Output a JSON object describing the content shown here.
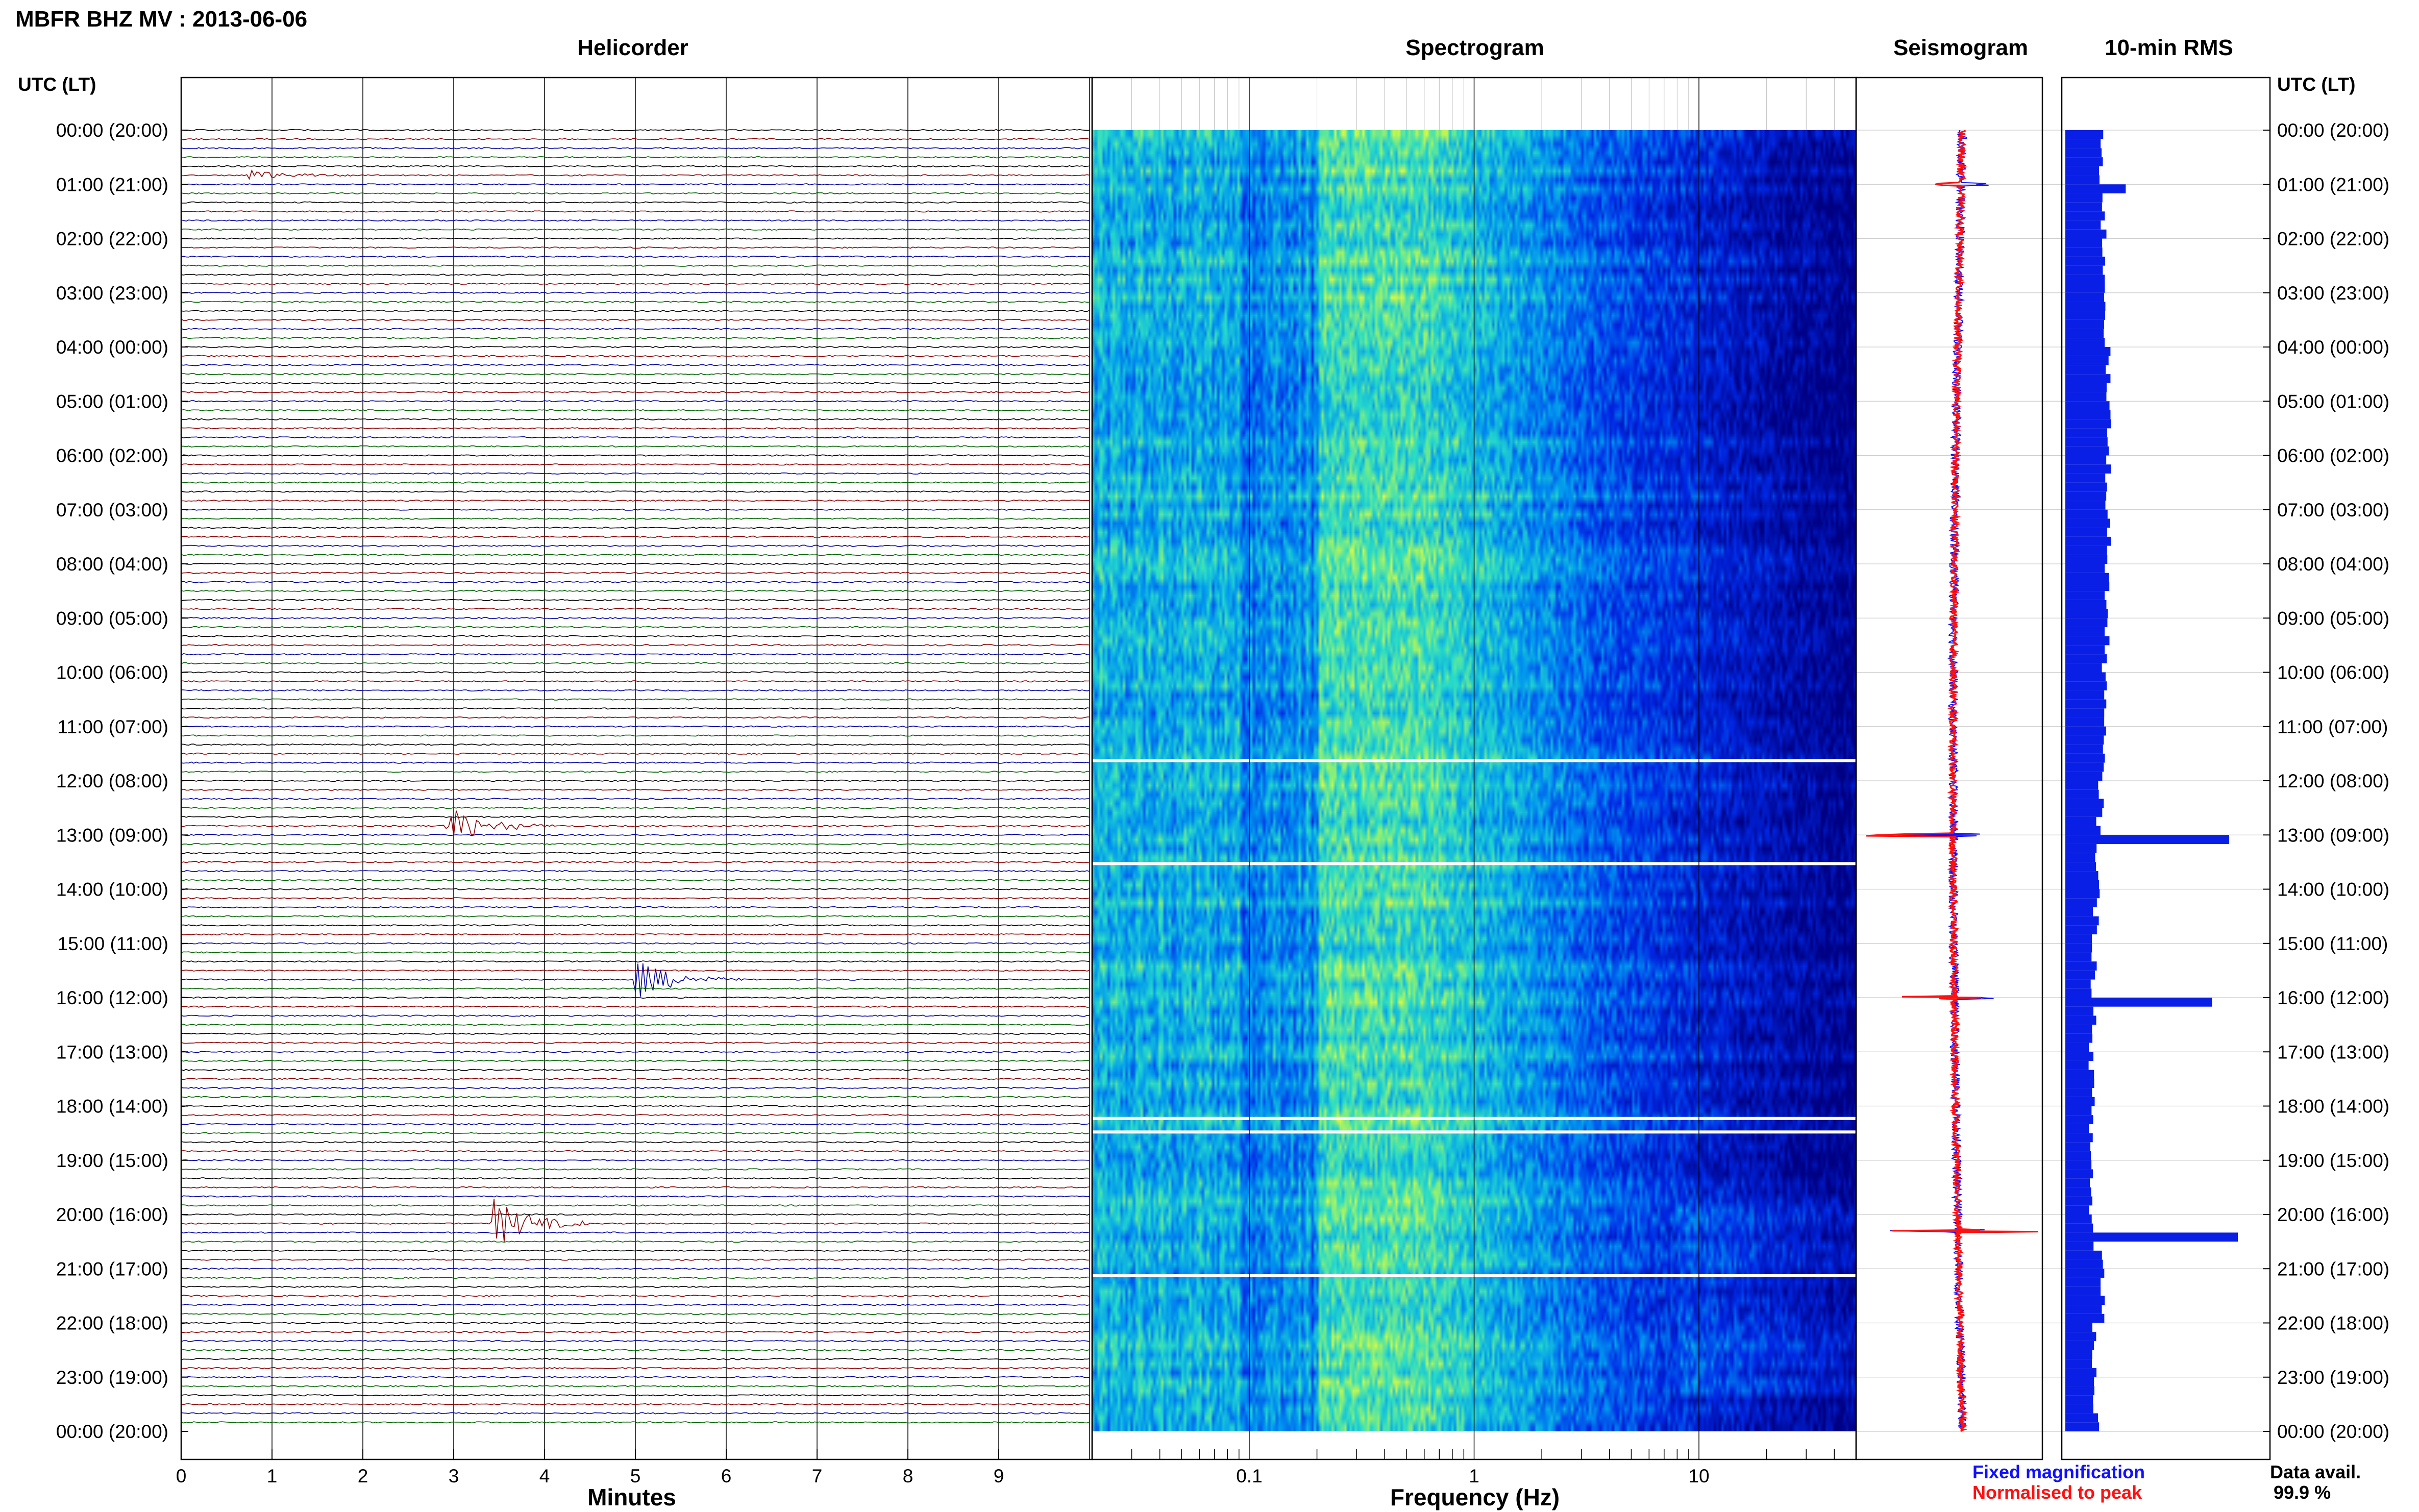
{
  "header": {
    "title": "MBFR BHZ MV : 2013-06-06",
    "left_axis_label": "UTC (LT)",
    "right_axis_label": "UTC (LT)"
  },
  "panels": {
    "helicorder": "Helicorder",
    "spectrogram": "Spectrogram",
    "seismogram": "Seismogram",
    "rms": "10-min RMS"
  },
  "axes": {
    "helicorder_xlabel": "Minutes",
    "spectrogram_xlabel": "Frequency (Hz)"
  },
  "legend": {
    "fixed": "Fixed magnification",
    "normalised": "Normalised to peak",
    "fixed_color": "#1010ff",
    "normalised_color": "#ff1010"
  },
  "data_availability": {
    "label": "Data avail.",
    "value": "99.9 %"
  },
  "chart_data": {
    "type": "heatmap",
    "time_labels": [
      "00:00 (20:00)",
      "01:00 (21:00)",
      "02:00 (22:00)",
      "03:00 (23:00)",
      "04:00 (00:00)",
      "05:00 (01:00)",
      "06:00 (02:00)",
      "07:00 (03:00)",
      "08:00 (04:00)",
      "09:00 (05:00)",
      "10:00 (06:00)",
      "11:00 (07:00)",
      "12:00 (08:00)",
      "13:00 (09:00)",
      "14:00 (10:00)",
      "15:00 (11:00)",
      "16:00 (12:00)",
      "17:00 (13:00)",
      "18:00 (14:00)",
      "19:00 (15:00)",
      "20:00 (16:00)",
      "21:00 (17:00)",
      "22:00 (18:00)",
      "23:00 (19:00)",
      "00:00 (20:00)"
    ],
    "helicorder": {
      "x_ticks": [
        "0",
        "1",
        "2",
        "3",
        "4",
        "5",
        "6",
        "7",
        "8",
        "9"
      ],
      "xlim": [
        0,
        10
      ],
      "trace_colors": [
        "#000000",
        "#8b0000",
        "#0000a0",
        "#006400"
      ],
      "events": [
        {
          "time_h": 12.8,
          "minute": 2.9,
          "amp": 5,
          "color_index": 1
        },
        {
          "time_h": 15.7,
          "minute": 5.0,
          "amp": 4.5,
          "color_index": 2
        },
        {
          "time_h": 20.1,
          "minute": 3.4,
          "amp": 6,
          "color_index": 2
        },
        {
          "time_h": 0.75,
          "minute": 0.7,
          "amp": 1.5,
          "color_index": 1
        }
      ]
    },
    "spectrogram": {
      "x_ticks": [
        "0.1",
        "1",
        "10"
      ],
      "x_scale": "log",
      "xlim": [
        0.02,
        50
      ]
    },
    "rms_spikes": [
      {
        "time_h": 13.0,
        "level": 0.95
      },
      {
        "time_h": 16.0,
        "level": 0.85
      },
      {
        "time_h": 20.3,
        "level": 1.0
      },
      {
        "time_h": 1.0,
        "level": 0.35
      }
    ]
  }
}
